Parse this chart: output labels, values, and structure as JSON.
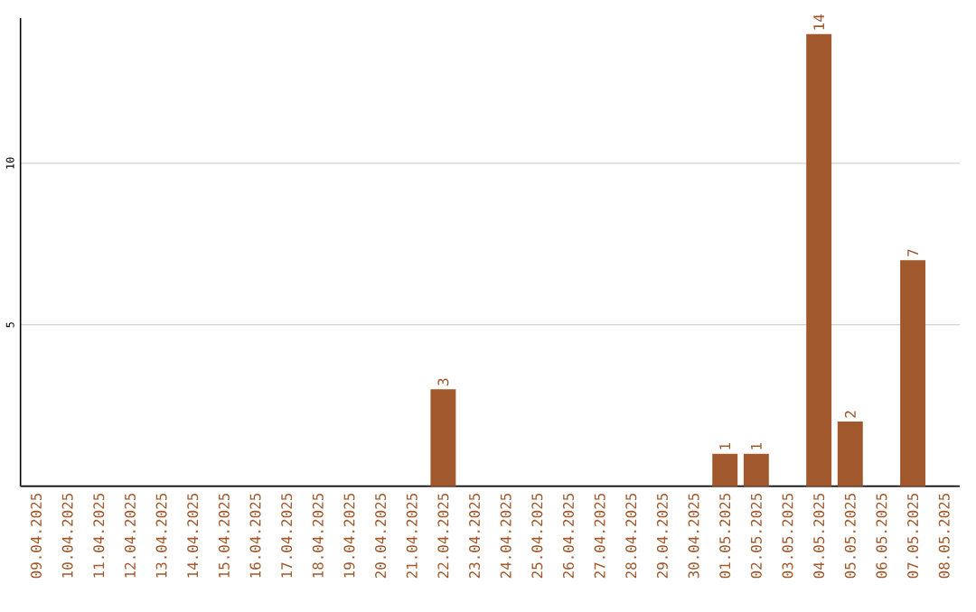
{
  "chart_data": {
    "type": "bar",
    "categories": [
      "09.04.2025",
      "10.04.2025",
      "11.04.2025",
      "12.04.2025",
      "13.04.2025",
      "14.04.2025",
      "15.04.2025",
      "16.04.2025",
      "17.04.2025",
      "18.04.2025",
      "19.04.2025",
      "20.04.2025",
      "21.04.2025",
      "22.04.2025",
      "23.04.2025",
      "24.04.2025",
      "25.04.2025",
      "26.04.2025",
      "27.04.2025",
      "28.04.2025",
      "29.04.2025",
      "30.04.2025",
      "01.05.2025",
      "02.05.2025",
      "03.05.2025",
      "04.05.2025",
      "05.05.2025",
      "06.05.2025",
      "07.05.2025",
      "08.05.2025"
    ],
    "values": [
      0,
      0,
      0,
      0,
      0,
      0,
      0,
      0,
      0,
      0,
      0,
      0,
      0,
      3,
      0,
      0,
      0,
      0,
      0,
      0,
      0,
      0,
      1,
      1,
      0,
      14,
      2,
      0,
      7,
      0
    ],
    "value_labels": [
      null,
      null,
      null,
      null,
      null,
      null,
      null,
      null,
      null,
      null,
      null,
      null,
      null,
      "3",
      null,
      null,
      null,
      null,
      null,
      null,
      null,
      null,
      "1",
      "1",
      null,
      "14",
      "2",
      null,
      "7",
      null
    ],
    "color": "#a0582c",
    "ylim": [
      0,
      14.5
    ],
    "yticks": [
      5,
      10
    ],
    "grid": "y"
  }
}
